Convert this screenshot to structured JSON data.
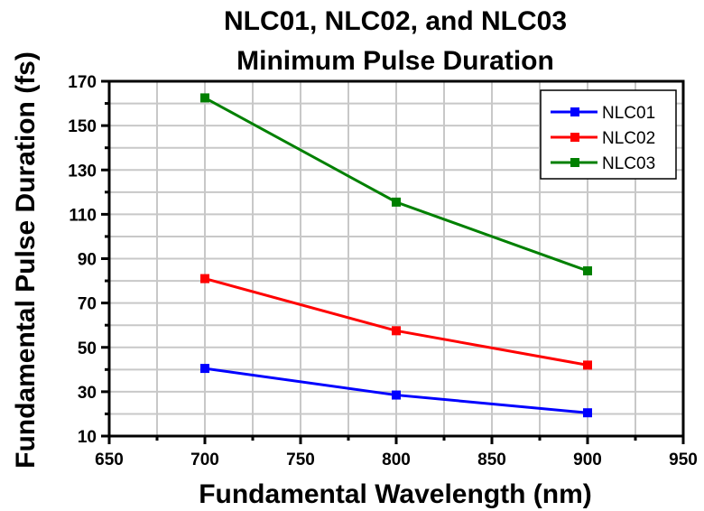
{
  "chart_data": {
    "type": "line",
    "title": [
      "NLC01, NLC02, and NLC03",
      "Minimum Pulse Duration"
    ],
    "xlabel": "Fundamental Wavelength (nm)",
    "ylabel": "Fundamental Pulse Duration (fs)",
    "xlim": [
      650,
      950
    ],
    "ylim": [
      10,
      170
    ],
    "xticks": [
      650,
      700,
      750,
      800,
      850,
      900,
      950
    ],
    "yticks": [
      10,
      30,
      50,
      70,
      90,
      110,
      130,
      150,
      170
    ],
    "xtick_labels": [
      "650",
      "700",
      "750",
      "800",
      "850",
      "900",
      "950"
    ],
    "ytick_labels": [
      "10",
      "30",
      "50",
      "70",
      "90",
      "110",
      "130",
      "150",
      "170"
    ],
    "x_minor_step": 25,
    "y_minor_step": 10,
    "grid": true,
    "legend_position": "top-right",
    "x": [
      700,
      800,
      900
    ],
    "series": [
      {
        "name": "NLC01",
        "color": "#0000ff",
        "values": [
          40.5,
          28.5,
          20.5
        ]
      },
      {
        "name": "NLC02",
        "color": "#ff0000",
        "values": [
          81,
          57.5,
          42
        ]
      },
      {
        "name": "NLC03",
        "color": "#008000",
        "values": [
          162.5,
          115.5,
          84.5
        ]
      }
    ]
  }
}
